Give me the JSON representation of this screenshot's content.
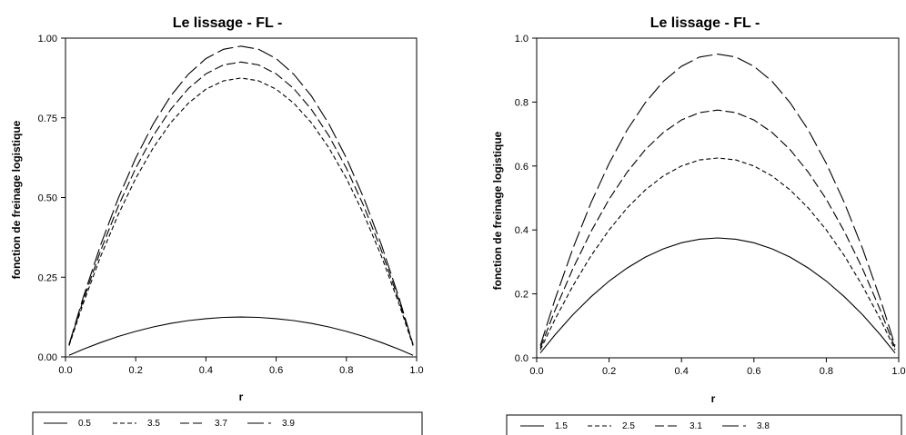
{
  "chart_data": [
    {
      "type": "line",
      "title": "Le lissage - FL -",
      "xlabel": "r",
      "ylabel": "fonction de freinage logistique",
      "xlim": [
        0,
        1
      ],
      "ylim": [
        0,
        1
      ],
      "x_ticks": [
        "0.0",
        "0.2",
        "0.4",
        "0.6",
        "0.8",
        "1.0"
      ],
      "y_ticks": [
        "0.00",
        "0.25",
        "0.50",
        "0.75",
        "1.00"
      ],
      "legend_position": "bottom",
      "x": [
        0.01,
        0.05,
        0.1,
        0.15,
        0.2,
        0.25,
        0.3,
        0.35,
        0.4,
        0.45,
        0.5,
        0.55,
        0.6,
        0.65,
        0.7,
        0.75,
        0.8,
        0.85,
        0.9,
        0.95,
        0.99
      ],
      "series": [
        {
          "name": "0.5",
          "style": "solid",
          "values": [
            0.005,
            0.024,
            0.045,
            0.064,
            0.08,
            0.094,
            0.105,
            0.114,
            0.12,
            0.124,
            0.125,
            0.124,
            0.12,
            0.114,
            0.105,
            0.094,
            0.08,
            0.064,
            0.045,
            0.024,
            0.005
          ]
        },
        {
          "name": "3.5",
          "style": "short-dash",
          "values": [
            0.035,
            0.166,
            0.315,
            0.446,
            0.56,
            0.656,
            0.735,
            0.796,
            0.84,
            0.866,
            0.875,
            0.866,
            0.84,
            0.796,
            0.735,
            0.656,
            0.56,
            0.446,
            0.315,
            0.166,
            0.035
          ]
        },
        {
          "name": "3.7",
          "style": "medium-dash",
          "values": [
            0.037,
            0.176,
            0.333,
            0.472,
            0.592,
            0.694,
            0.777,
            0.842,
            0.888,
            0.916,
            0.925,
            0.916,
            0.888,
            0.842,
            0.777,
            0.694,
            0.592,
            0.472,
            0.333,
            0.176,
            0.037
          ]
        },
        {
          "name": "3.9",
          "style": "long-dash",
          "values": [
            0.039,
            0.185,
            0.351,
            0.497,
            0.624,
            0.731,
            0.819,
            0.887,
            0.936,
            0.965,
            0.975,
            0.965,
            0.936,
            0.887,
            0.819,
            0.731,
            0.624,
            0.497,
            0.351,
            0.185,
            0.039
          ]
        }
      ]
    },
    {
      "type": "line",
      "title": "Le lissage - FL -",
      "xlabel": "r",
      "ylabel": "fonction de freinage logistique",
      "xlim": [
        0,
        1
      ],
      "ylim": [
        0,
        1
      ],
      "x_ticks": [
        "0.0",
        "0.2",
        "0.4",
        "0.6",
        "0.8",
        "1.0"
      ],
      "y_ticks": [
        "0.0",
        "0.2",
        "0.4",
        "0.6",
        "0.8",
        "1.0"
      ],
      "legend_position": "bottom",
      "x": [
        0.01,
        0.05,
        0.1,
        0.15,
        0.2,
        0.25,
        0.3,
        0.35,
        0.4,
        0.45,
        0.5,
        0.55,
        0.6,
        0.65,
        0.7,
        0.75,
        0.8,
        0.85,
        0.9,
        0.95,
        0.99
      ],
      "series": [
        {
          "name": "1.5",
          "style": "solid",
          "values": [
            0.015,
            0.071,
            0.135,
            0.191,
            0.24,
            0.281,
            0.315,
            0.341,
            0.36,
            0.371,
            0.375,
            0.371,
            0.36,
            0.341,
            0.315,
            0.281,
            0.24,
            0.191,
            0.135,
            0.071,
            0.015
          ]
        },
        {
          "name": "2.5",
          "style": "short-dash",
          "values": [
            0.025,
            0.119,
            0.225,
            0.319,
            0.4,
            0.469,
            0.525,
            0.569,
            0.6,
            0.619,
            0.625,
            0.619,
            0.6,
            0.569,
            0.525,
            0.469,
            0.4,
            0.319,
            0.225,
            0.119,
            0.025
          ]
        },
        {
          "name": "3.1",
          "style": "medium-dash",
          "values": [
            0.031,
            0.147,
            0.279,
            0.395,
            0.496,
            0.581,
            0.651,
            0.705,
            0.744,
            0.767,
            0.775,
            0.767,
            0.744,
            0.705,
            0.651,
            0.581,
            0.496,
            0.395,
            0.279,
            0.147,
            0.031
          ]
        },
        {
          "name": "3.8",
          "style": "long-dash",
          "values": [
            0.038,
            0.181,
            0.342,
            0.485,
            0.608,
            0.713,
            0.798,
            0.865,
            0.912,
            0.941,
            0.95,
            0.941,
            0.912,
            0.865,
            0.798,
            0.713,
            0.608,
            0.485,
            0.342,
            0.181,
            0.038
          ]
        }
      ]
    }
  ]
}
